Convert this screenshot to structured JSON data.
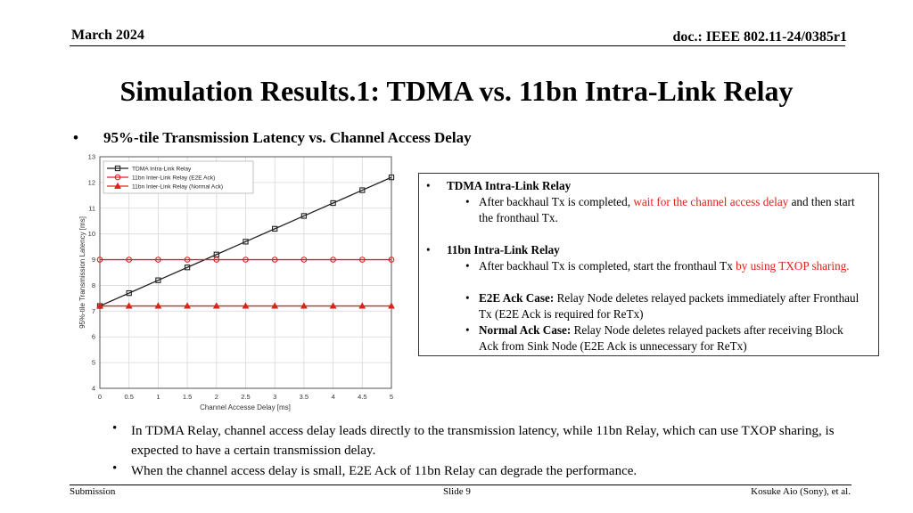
{
  "header": {
    "date": "March 2024",
    "doc": "doc.: IEEE 802.11-24/0385r1"
  },
  "title": "Simulation Results.1:  TDMA vs. 11bn Intra-Link Relay",
  "subtitle": {
    "bullet": "•",
    "text": "95%-tile Transmission Latency vs. Channel Access Delay"
  },
  "chart_data": {
    "type": "line",
    "xlabel": "Channel Accesse Delay [ms]",
    "ylabel": "95%-tile Transmission Latency [ms]",
    "xlim": [
      0,
      5
    ],
    "ylim": [
      4,
      13
    ],
    "x_ticks": [
      "0",
      "0.5",
      "1",
      "1.5",
      "2",
      "2.5",
      "3",
      "3.5",
      "4",
      "4.5",
      "5"
    ],
    "y_ticks": [
      "4",
      "5",
      "6",
      "7",
      "8",
      "9",
      "10",
      "11",
      "12",
      "13"
    ],
    "grid": true,
    "legend_position": "top-left",
    "x": [
      0,
      0.5,
      1,
      1.5,
      2,
      2.5,
      3,
      3.5,
      4,
      4.5,
      5
    ],
    "series": [
      {
        "name": "TDMA Intra-Link Relay",
        "color": "#222222",
        "marker": "square",
        "values": [
          7.2,
          7.7,
          8.2,
          8.7,
          9.2,
          9.7,
          10.2,
          10.7,
          11.2,
          11.7,
          12.2
        ]
      },
      {
        "name": "11bn Inter-Link Relay (E2E Ack)",
        "color": "#e0201a",
        "marker": "circle",
        "values": [
          9.0,
          9.0,
          9.0,
          9.0,
          9.0,
          9.0,
          9.0,
          9.0,
          9.0,
          9.0,
          9.0
        ]
      },
      {
        "name": "11bn Inter-Link Relay (Normal Ack)",
        "color": "#e0201a",
        "marker": "triangle",
        "values": [
          7.2,
          7.2,
          7.2,
          7.2,
          7.2,
          7.2,
          7.2,
          7.2,
          7.2,
          7.2,
          7.2
        ]
      }
    ]
  },
  "notes": {
    "bullet": "•",
    "sub_bullet": "•",
    "tdma": {
      "heading": "TDMA Intra-Link Relay",
      "items": [
        {
          "pre": "After backhaul Tx is completed, ",
          "red": "wait for the channel access delay",
          "post": " and then start the fronthaul Tx."
        }
      ]
    },
    "bn": {
      "heading": "11bn Intra-Link Relay",
      "items": [
        {
          "pre": "After backhaul Tx is completed, start the fronthaul Tx ",
          "red": "by using TXOP sharing."
        },
        {
          "bold": "E2E Ack Case:",
          "post": " Relay Node deletes relayed packets immediately after Fronthaul Tx (E2E Ack is required for ReTx)"
        },
        {
          "bold": "Normal Ack Case:",
          "post": " Relay Node deletes relayed packets after receiving Block Ack from Sink Node (E2E Ack is unnecessary for ReTx)"
        }
      ]
    }
  },
  "bottom_bullets": [
    "In TDMA Relay, channel access delay leads directly to the transmission latency, while 11bn Relay, which can use TXOP sharing, is expected to have a certain transmission delay.",
    "When the channel access delay is small, E2E Ack of 11bn Relay can degrade the performance."
  ],
  "bottom_bullet_symbol": "•",
  "footer": {
    "left": "Submission",
    "center": "Slide 9",
    "right": "Kosuke Aio (Sony), et al."
  }
}
